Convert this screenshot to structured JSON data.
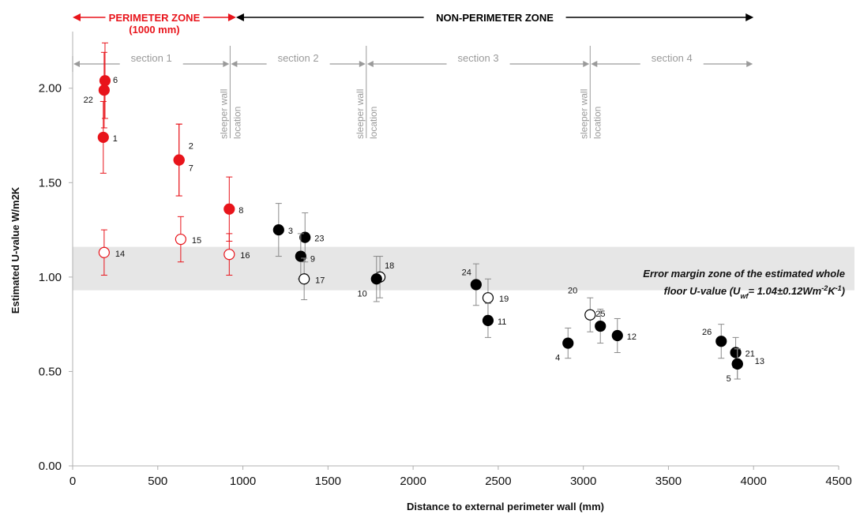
{
  "chart_data": {
    "type": "scatter",
    "xlabel": "Distance to external perimeter wall (mm)",
    "ylabel": "Estimated U-value W/m2K",
    "xlim": [
      0,
      4500
    ],
    "ylim": [
      0,
      2.3
    ],
    "xticks": [
      "0",
      "500",
      "1000",
      "1500",
      "2000",
      "2500",
      "3000",
      "3500",
      "4000",
      "4500"
    ],
    "yticks": [
      "0.00",
      "0.50",
      "1.00",
      "1.50",
      "2.00"
    ],
    "xtick_values": [
      0,
      500,
      1000,
      1500,
      2000,
      2500,
      3000,
      3500,
      4000,
      4500
    ],
    "ytick_values": [
      0,
      0.5,
      1.0,
      1.5,
      2.0
    ],
    "grid": false,
    "zones": [
      {
        "label": "PERIMETER ZONE",
        "sublabel": "(1000 mm)",
        "x0": 0,
        "x1": 960,
        "color": "#e8141b"
      },
      {
        "label": "NON-PERIMETER ZONE",
        "x0": 960,
        "x1": 4000,
        "color": "#000000"
      }
    ],
    "sections": [
      {
        "label": "section 1",
        "x0": 0,
        "x1": 925
      },
      {
        "label": "section 2",
        "x0": 925,
        "x1": 1725
      },
      {
        "label": "section 3",
        "x0": 1725,
        "x1": 3040
      },
      {
        "label": "section 4",
        "x0": 3040,
        "x1": 4000
      }
    ],
    "sleeper_walls": [
      {
        "x": 925,
        "label1": "sleeper wall",
        "label2": "location"
      },
      {
        "x": 1725,
        "label1": "sleeper wall",
        "label2": "location"
      },
      {
        "x": 3040,
        "label1": "sleeper wall",
        "label2": "location"
      }
    ],
    "band": {
      "y0": 0.93,
      "y1": 1.16,
      "color": "#e6e6e6",
      "text_line1": "Error margin zone of the estimated whole",
      "text_line2_pre": "floor U-value (U",
      "text_line2_sub": "wf",
      "text_line2_mid": "= 1.04±0.12Wm",
      "text_line2_sup1": "-2",
      "text_line2_k": "K",
      "text_line2_sup2": "-1",
      "text_line2_post": ")"
    },
    "colors": {
      "perimeter": "#e8141b",
      "nonperimeter": "#000000",
      "errorbar_gray": "#8a8a8a",
      "axis": "#b0b0b0"
    },
    "points": [
      {
        "id": "6",
        "x": 190,
        "y": 2.04,
        "err": 0.2,
        "zone": "perimeter",
        "filled": true
      },
      {
        "id": "22",
        "x": 185,
        "y": 1.99,
        "err": 0.2,
        "zone": "perimeter",
        "filled": true
      },
      {
        "id": "1",
        "x": 180,
        "y": 1.74,
        "err": 0.19,
        "zone": "perimeter",
        "filled": true
      },
      {
        "id": "14",
        "x": 185,
        "y": 1.13,
        "err": 0.12,
        "zone": "perimeter",
        "filled": false
      },
      {
        "id": "2",
        "x": 625,
        "y": 1.62,
        "err": 0.19,
        "zone": "perimeter",
        "filled": true
      },
      {
        "id": "7",
        "x": 625,
        "y": 1.62,
        "err": 0.19,
        "zone": "perimeter",
        "filled": true
      },
      {
        "id": "15",
        "x": 635,
        "y": 1.2,
        "err": 0.12,
        "zone": "perimeter",
        "filled": false
      },
      {
        "id": "8",
        "x": 920,
        "y": 1.36,
        "err": 0.17,
        "zone": "perimeter",
        "filled": true
      },
      {
        "id": "16",
        "x": 920,
        "y": 1.12,
        "err": 0.11,
        "zone": "perimeter",
        "filled": false
      },
      {
        "id": "3",
        "x": 1210,
        "y": 1.25,
        "err": 0.14,
        "zone": "nonperimeter",
        "filled": true
      },
      {
        "id": "23",
        "x": 1365,
        "y": 1.21,
        "err": 0.13,
        "zone": "nonperimeter",
        "filled": true
      },
      {
        "id": "9",
        "x": 1340,
        "y": 1.11,
        "err": 0.12,
        "zone": "nonperimeter",
        "filled": true
      },
      {
        "id": "17",
        "x": 1360,
        "y": 0.99,
        "err": 0.11,
        "zone": "nonperimeter",
        "filled": false
      },
      {
        "id": "18",
        "x": 1805,
        "y": 1.0,
        "err": 0.11,
        "zone": "nonperimeter",
        "filled": false
      },
      {
        "id": "10",
        "x": 1785,
        "y": 0.99,
        "err": 0.12,
        "zone": "nonperimeter",
        "filled": true
      },
      {
        "id": "24",
        "x": 2370,
        "y": 0.96,
        "err": 0.11,
        "zone": "nonperimeter",
        "filled": true
      },
      {
        "id": "19",
        "x": 2440,
        "y": 0.89,
        "err": 0.1,
        "zone": "nonperimeter",
        "filled": false
      },
      {
        "id": "11",
        "x": 2440,
        "y": 0.77,
        "err": 0.09,
        "zone": "nonperimeter",
        "filled": true
      },
      {
        "id": "4",
        "x": 2910,
        "y": 0.65,
        "err": 0.08,
        "zone": "nonperimeter",
        "filled": true
      },
      {
        "id": "20",
        "x": 3040,
        "y": 0.8,
        "err": 0.09,
        "zone": "nonperimeter",
        "filled": false
      },
      {
        "id": "25",
        "x": 3100,
        "y": 0.74,
        "err": 0.09,
        "zone": "nonperimeter",
        "filled": true
      },
      {
        "id": "12",
        "x": 3200,
        "y": 0.69,
        "err": 0.09,
        "zone": "nonperimeter",
        "filled": true
      },
      {
        "id": "26",
        "x": 3810,
        "y": 0.66,
        "err": 0.09,
        "zone": "nonperimeter",
        "filled": true
      },
      {
        "id": "21",
        "x": 3895,
        "y": 0.6,
        "err": 0.08,
        "zone": "nonperimeter",
        "filled": true
      },
      {
        "id": "5",
        "x": 3905,
        "y": 0.54,
        "err": 0.08,
        "zone": "nonperimeter",
        "filled": true
      },
      {
        "id": "13",
        "x": 3905,
        "y": 0.54,
        "err": 0.08,
        "zone": "nonperimeter",
        "filled": true
      }
    ]
  }
}
